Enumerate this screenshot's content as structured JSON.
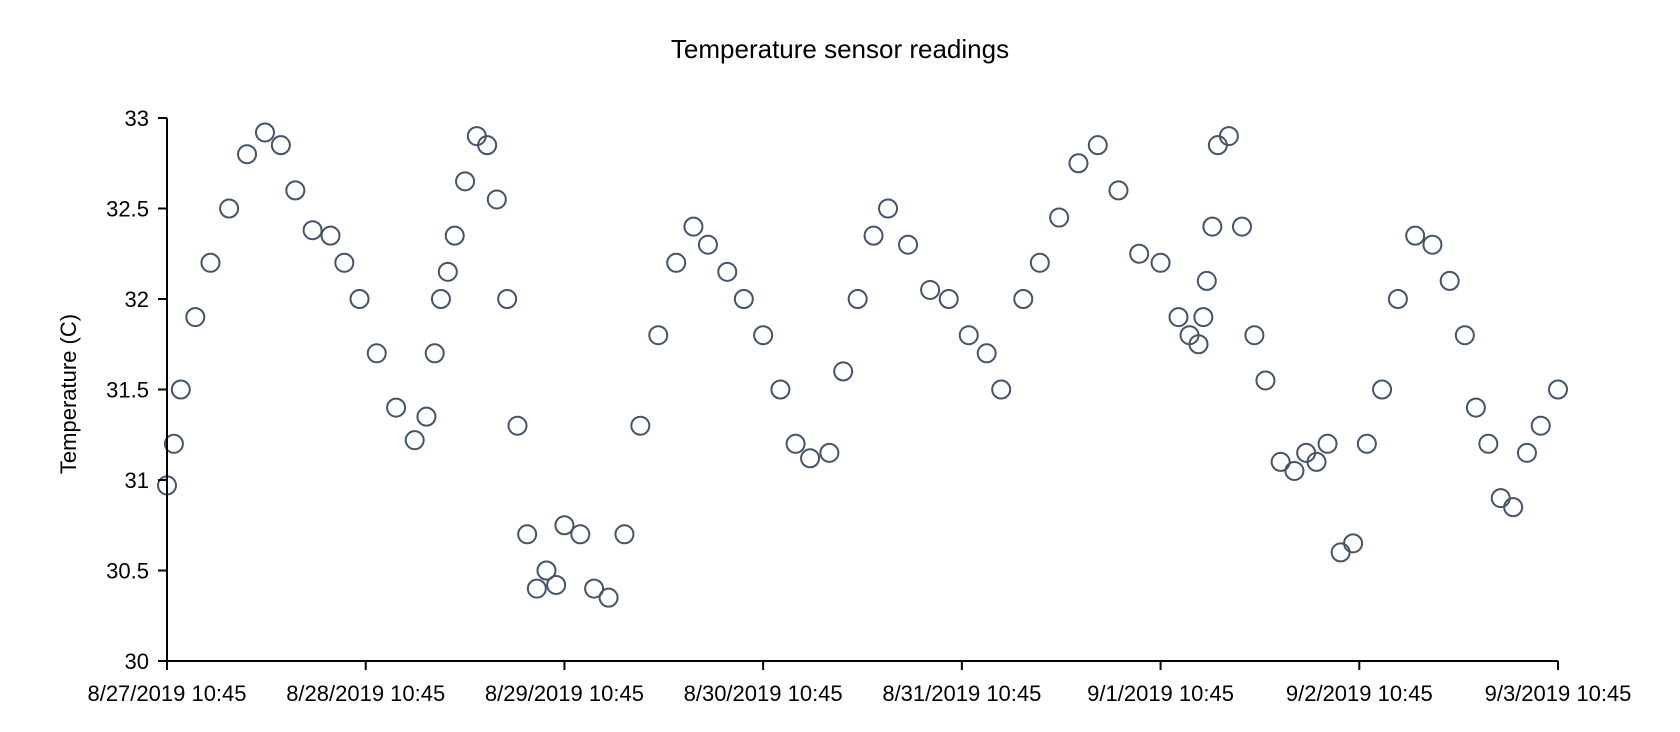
{
  "chart_data": {
    "type": "scatter",
    "title": "Temperature sensor readings",
    "xlabel": "",
    "ylabel": "Temperature (C)",
    "ylim": [
      30,
      33
    ],
    "y_ticks": [
      30,
      30.5,
      31,
      31.5,
      32,
      32.5,
      33
    ],
    "y_tick_labels": [
      "30",
      "30.5",
      "31",
      "31.5",
      "32",
      "32.5",
      "33"
    ],
    "xlim": [
      "2019-08-27 10:45",
      "2019-09-03 10:45"
    ],
    "x_ticks": [
      "2019-08-27 10:45",
      "2019-08-28 10:45",
      "2019-08-29 10:45",
      "2019-08-30 10:45",
      "2019-08-31 10:45",
      "2019-09-01 10:45",
      "2019-09-02 10:45",
      "2019-09-03 10:45"
    ],
    "x_tick_labels": [
      "8/27/2019 10:45",
      "8/28/2019 10:45",
      "8/29/2019 10:45",
      "8/30/2019 10:45",
      "8/31/2019 10:45",
      "9/1/2019 10:45",
      "9/2/2019 10:45",
      "9/3/2019 10:45"
    ],
    "grid": false,
    "legend": "none",
    "marker": "hollow-circle",
    "color": "#44546a",
    "series": [
      {
        "x": [
          "2019-08-27 10:45",
          "2019-08-27 11:35",
          "2019-08-27 12:25",
          "2019-08-27 14:10",
          "2019-08-27 16:00",
          "2019-08-27 18:15",
          "2019-08-27 20:25",
          "2019-08-27 22:35",
          "2019-08-28 00:30",
          "2019-08-28 02:15",
          "2019-08-28 04:20",
          "2019-08-28 06:30",
          "2019-08-28 08:10",
          "2019-08-28 10:00",
          "2019-08-28 12:05",
          "2019-08-28 14:25",
          "2019-08-28 16:40",
          "2019-08-28 18:05",
          "2019-08-28 19:05",
          "2019-08-28 19:50",
          "2019-08-28 20:40",
          "2019-08-28 21:30",
          "2019-08-28 22:45",
          "2019-08-29 00:10",
          "2019-08-29 01:25",
          "2019-08-29 02:35",
          "2019-08-29 03:50",
          "2019-08-29 05:05",
          "2019-08-29 06:15",
          "2019-08-29 07:25",
          "2019-08-29 08:35",
          "2019-08-29 09:45",
          "2019-08-29 10:45",
          "2019-08-29 12:40",
          "2019-08-29 14:20",
          "2019-08-29 16:05",
          "2019-08-29 18:00",
          "2019-08-29 19:55",
          "2019-08-29 22:05",
          "2019-08-30 00:15",
          "2019-08-30 02:20",
          "2019-08-30 04:05",
          "2019-08-30 06:25",
          "2019-08-30 08:25",
          "2019-08-30 10:45",
          "2019-08-30 12:50",
          "2019-08-30 14:40",
          "2019-08-30 16:25",
          "2019-08-30 18:45",
          "2019-08-30 20:25",
          "2019-08-30 22:10",
          "2019-08-31 00:05",
          "2019-08-31 01:50",
          "2019-08-31 04:15",
          "2019-08-31 06:55",
          "2019-08-31 09:10",
          "2019-08-31 11:35",
          "2019-08-31 13:45",
          "2019-08-31 15:30",
          "2019-08-31 18:10",
          "2019-08-31 20:10",
          "2019-08-31 22:30",
          "2019-09-01 00:50",
          "2019-09-01 03:10",
          "2019-09-01 05:40",
          "2019-09-01 08:10",
          "2019-09-01 10:45",
          "2019-09-01 12:55",
          "2019-09-01 14:15",
          "2019-09-01 15:20",
          "2019-09-01 15:55",
          "2019-09-01 16:20",
          "2019-09-01 17:00",
          "2019-09-01 17:40",
          "2019-09-01 19:00",
          "2019-09-01 20:35",
          "2019-09-01 22:05",
          "2019-09-01 23:25",
          "2019-09-02 01:15",
          "2019-09-02 02:55",
          "2019-09-02 04:20",
          "2019-09-02 05:35",
          "2019-09-02 06:55",
          "2019-09-02 08:30",
          "2019-09-02 10:00",
          "2019-09-02 11:40",
          "2019-09-02 13:30",
          "2019-09-02 15:25",
          "2019-09-02 17:30",
          "2019-09-02 19:35",
          "2019-09-02 21:40",
          "2019-09-02 23:30",
          "2019-09-03 00:50",
          "2019-09-03 02:20",
          "2019-09-03 03:50",
          "2019-09-03 05:20",
          "2019-09-03 07:00",
          "2019-09-03 08:40",
          "2019-09-03 10:45"
        ],
        "y": [
          30.97,
          31.2,
          31.5,
          31.9,
          32.2,
          32.5,
          32.8,
          32.92,
          32.85,
          32.6,
          32.38,
          32.35,
          32.2,
          32.0,
          31.7,
          31.4,
          31.22,
          31.35,
          31.7,
          32.0,
          32.15,
          32.35,
          32.65,
          32.9,
          32.85,
          32.55,
          32.0,
          31.3,
          30.7,
          30.4,
          30.5,
          30.42,
          30.75,
          30.7,
          30.4,
          30.35,
          30.7,
          31.3,
          31.8,
          32.2,
          32.4,
          32.3,
          32.15,
          32.0,
          31.8,
          31.5,
          31.2,
          31.12,
          31.15,
          31.6,
          32.0,
          32.35,
          32.5,
          32.3,
          32.05,
          32.0,
          31.8,
          31.7,
          31.5,
          32.0,
          32.2,
          32.45,
          32.75,
          32.85,
          32.6,
          32.25,
          32.2,
          31.9,
          31.8,
          31.75,
          31.9,
          32.1,
          32.4,
          32.85,
          32.9,
          32.4,
          31.8,
          31.55,
          31.1,
          31.05,
          31.15,
          31.1,
          31.2,
          30.6,
          30.65,
          31.2,
          31.5,
          32.0,
          32.35,
          32.3,
          32.1,
          31.8,
          31.4,
          31.2,
          30.9,
          30.85,
          31.15,
          31.3,
          31.5
        ]
      }
    ]
  }
}
